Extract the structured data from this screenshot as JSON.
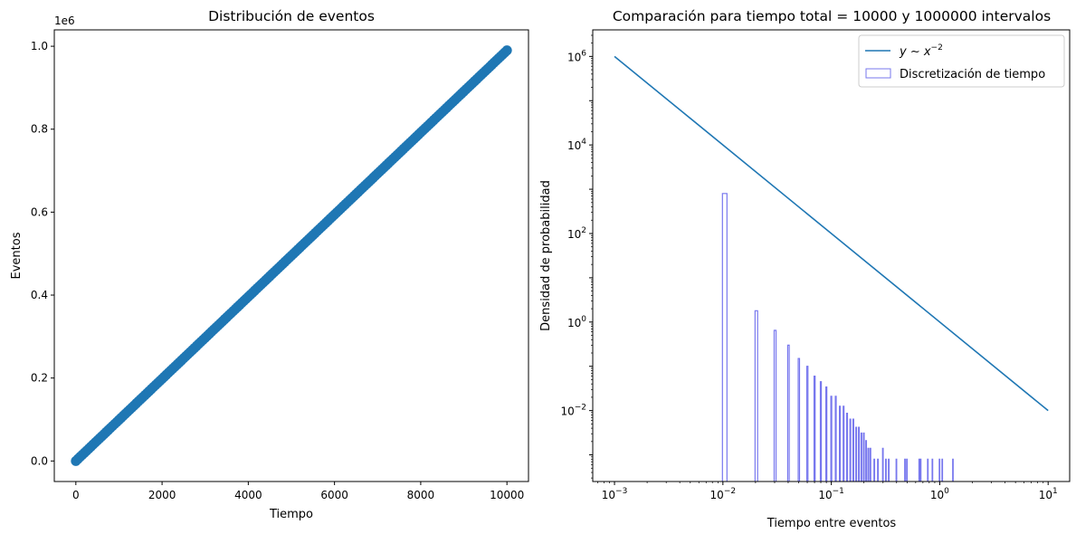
{
  "chart_data": [
    {
      "type": "scatter",
      "title": "Distribución de eventos",
      "xlabel": "Tiempo",
      "ylabel": "Eventos",
      "y_offset_text": "1e6",
      "xlim": [
        -500,
        10500
      ],
      "ylim": [
        -49500,
        1039500
      ],
      "xticks": [
        0,
        2000,
        4000,
        6000,
        8000,
        10000
      ],
      "xtick_labels": [
        "0",
        "2000",
        "4000",
        "6000",
        "8000",
        "10000"
      ],
      "yticks": [
        0,
        200000,
        400000,
        600000,
        800000,
        1000000
      ],
      "ytick_labels": [
        "0.0",
        "0.2",
        "0.4",
        "0.6",
        "0.8",
        "1.0"
      ],
      "color": "#1f77b4",
      "grid": false,
      "series": [
        {
          "x": [
            0,
            50,
            100,
            150,
            200,
            250,
            300,
            350,
            400,
            450,
            500,
            550,
            600,
            650,
            700,
            750,
            800,
            850,
            900,
            950,
            1000,
            1050,
            1100,
            1150,
            1200,
            1250,
            1300,
            1350,
            1400,
            1450,
            1500,
            1550,
            1600,
            1650,
            1700,
            1750,
            1800,
            1850,
            1900,
            1950,
            2000,
            2050,
            2100,
            2150,
            2200,
            2250,
            2300,
            2350,
            2400,
            2450,
            2500,
            2550,
            2600,
            2650,
            2700,
            2750,
            2800,
            2850,
            2900,
            2950,
            3000,
            3050,
            3100,
            3150,
            3200,
            3250,
            3300,
            3350,
            3400,
            3450,
            3500,
            3550,
            3600,
            3650,
            3700,
            3750,
            3800,
            3850,
            3900,
            3950,
            4000,
            4050,
            4100,
            4150,
            4200,
            4250,
            4300,
            4350,
            4400,
            4450,
            4500,
            4550,
            4600,
            4650,
            4700,
            4750,
            4800,
            4850,
            4900,
            4950,
            5000,
            5050,
            5100,
            5150,
            5200,
            5250,
            5300,
            5350,
            5400,
            5450,
            5500,
            5550,
            5600,
            5650,
            5700,
            5750,
            5800,
            5850,
            5900,
            5950,
            6000,
            6050,
            6100,
            6150,
            6200,
            6250,
            6300,
            6350,
            6400,
            6450,
            6500,
            6550,
            6600,
            6650,
            6700,
            6750,
            6800,
            6850,
            6900,
            6950,
            7000,
            7050,
            7100,
            7150,
            7200,
            7250,
            7300,
            7350,
            7400,
            7450,
            7500,
            7550,
            7600,
            7650,
            7700,
            7750,
            7800,
            7850,
            7900,
            7950,
            8000,
            8050,
            8100,
            8150,
            8200,
            8250,
            8300,
            8350,
            8400,
            8450,
            8500,
            8550,
            8600,
            8650,
            8700,
            8750,
            8800,
            8850,
            8900,
            8950,
            9000,
            9050,
            9100,
            9150,
            9200,
            9250,
            9300,
            9350,
            9400,
            9450,
            9500,
            9550,
            9600,
            9650,
            9700,
            9750,
            9800,
            9850,
            9900,
            9950,
            10000
          ],
          "y": [
            0,
            4950,
            9900,
            14850,
            19800,
            24750,
            29700,
            34650,
            39600,
            44550,
            49500,
            54450,
            59400,
            64350,
            69300,
            74250,
            79200,
            84150,
            89100,
            94050,
            99000,
            103950,
            108900,
            113850,
            118800,
            123750,
            128700,
            133650,
            138600,
            143550,
            148500,
            153450,
            158400,
            163350,
            168300,
            173250,
            178200,
            183150,
            188100,
            193050,
            198000,
            202950,
            207900,
            212850,
            217800,
            222750,
            227700,
            232650,
            237600,
            242550,
            247500,
            252450,
            257400,
            262350,
            267300,
            272250,
            277200,
            282150,
            287100,
            292050,
            297000,
            301950,
            306900,
            311850,
            316800,
            321750,
            326700,
            331650,
            336600,
            341550,
            346500,
            351450,
            356400,
            361350,
            366300,
            371250,
            376200,
            381150,
            386100,
            391050,
            396000,
            400950,
            405900,
            410850,
            415800,
            420750,
            425700,
            430650,
            435600,
            440550,
            445500,
            450450,
            455400,
            460350,
            465300,
            470250,
            475200,
            480150,
            485100,
            490050,
            495000,
            499950,
            504900,
            509850,
            514800,
            519750,
            524700,
            529650,
            534600,
            539550,
            544500,
            549450,
            554400,
            559350,
            564300,
            569250,
            574200,
            579150,
            584100,
            589050,
            594000,
            598950,
            603900,
            608850,
            613800,
            618750,
            623700,
            628650,
            633600,
            638550,
            643500,
            648450,
            653400,
            658350,
            663300,
            668250,
            673200,
            678150,
            683100,
            688050,
            693000,
            697950,
            702900,
            707850,
            712800,
            717750,
            722700,
            727650,
            732600,
            737550,
            742500,
            747450,
            752400,
            757350,
            762300,
            767250,
            772200,
            777150,
            782100,
            787050,
            792000,
            796950,
            801900,
            806850,
            811800,
            816750,
            821700,
            826650,
            831600,
            836550,
            841500,
            846450,
            851400,
            856350,
            861300,
            866250,
            871200,
            876150,
            881100,
            886050,
            891000,
            895950,
            900900,
            905850,
            910800,
            915750,
            920700,
            925650,
            930600,
            935550,
            940500,
            945450,
            950400,
            955350,
            960300,
            965250,
            970200,
            975150,
            980100,
            985050,
            990000
          ]
        }
      ]
    },
    {
      "type": "line+histogram",
      "title": "Comparación para tiempo total = 10000 y 1000000 intervalos",
      "xlabel": "Tiempo entre eventos",
      "ylabel": "Densidad de probabilidad",
      "xscale": "log",
      "yscale": "log",
      "xlim": [
        0.00063,
        15.8
      ],
      "ylim": [
        0.00025,
        3980000
      ],
      "xticks": [
        0.001,
        0.01,
        0.1,
        1,
        10
      ],
      "xtick_labels": [
        [
          "10",
          "−3"
        ],
        [
          "10",
          "−2"
        ],
        [
          "10",
          "−1"
        ],
        [
          "10",
          "0"
        ],
        [
          "10",
          "1"
        ]
      ],
      "yticks": [
        0.01,
        1,
        100,
        10000,
        1000000
      ],
      "ytick_labels": [
        [
          "10",
          "−2"
        ],
        [
          "10",
          "0"
        ],
        [
          "10",
          "2"
        ],
        [
          "10",
          "4"
        ],
        [
          "10",
          "6"
        ]
      ],
      "legend_position": "upper right",
      "legend": {
        "line_label": [
          "y ∼ x",
          "−2"
        ],
        "hist_label": "Discretización de tiempo"
      },
      "series": [
        {
          "kind": "line",
          "color": "#1f77b4",
          "x": [
            0.001,
            10
          ],
          "y": [
            1000000,
            0.01
          ]
        },
        {
          "kind": "histogram-step",
          "color": "#7777ee",
          "bins": [
            {
              "x0": 0.0099,
              "x1": 0.0109,
              "y": 800
            },
            {
              "x0": 0.0198,
              "x1": 0.0209,
              "y": 1.8
            },
            {
              "x0": 0.0297,
              "x1": 0.0309,
              "y": 0.65
            },
            {
              "x0": 0.0396,
              "x1": 0.0409,
              "y": 0.3
            },
            {
              "x0": 0.0495,
              "x1": 0.0509,
              "y": 0.15
            },
            {
              "x0": 0.0594,
              "x1": 0.0609,
              "y": 0.1
            },
            {
              "x0": 0.0693,
              "x1": 0.0709,
              "y": 0.06
            },
            {
              "x0": 0.0792,
              "x1": 0.0809,
              "y": 0.045
            },
            {
              "x0": 0.0891,
              "x1": 0.0909,
              "y": 0.034
            },
            {
              "x0": 0.099,
              "x1": 0.1009,
              "y": 0.021
            },
            {
              "x0": 0.1089,
              "x1": 0.1109,
              "y": 0.021
            },
            {
              "x0": 0.1188,
              "x1": 0.1209,
              "y": 0.0125
            },
            {
              "x0": 0.1287,
              "x1": 0.1309,
              "y": 0.0125
            },
            {
              "x0": 0.1386,
              "x1": 0.1409,
              "y": 0.0087
            },
            {
              "x0": 0.1485,
              "x1": 0.1509,
              "y": 0.0064
            },
            {
              "x0": 0.1584,
              "x1": 0.1609,
              "y": 0.0064
            },
            {
              "x0": 0.1683,
              "x1": 0.1709,
              "y": 0.0042
            },
            {
              "x0": 0.1782,
              "x1": 0.1809,
              "y": 0.0042
            },
            {
              "x0": 0.1881,
              "x1": 0.1909,
              "y": 0.0031
            },
            {
              "x0": 0.198,
              "x1": 0.2009,
              "y": 0.0031
            },
            {
              "x0": 0.2079,
              "x1": 0.2109,
              "y": 0.0021
            },
            {
              "x0": 0.2178,
              "x1": 0.2209,
              "y": 0.0014
            },
            {
              "x0": 0.2277,
              "x1": 0.2309,
              "y": 0.0014
            },
            {
              "x0": 0.2475,
              "x1": 0.2509,
              "y": 0.0008
            },
            {
              "x0": 0.2673,
              "x1": 0.2709,
              "y": 0.0008
            },
            {
              "x0": 0.297,
              "x1": 0.3009,
              "y": 0.0014
            },
            {
              "x0": 0.3168,
              "x1": 0.3209,
              "y": 0.0008
            },
            {
              "x0": 0.3366,
              "x1": 0.3409,
              "y": 0.0008
            },
            {
              "x0": 0.396,
              "x1": 0.4009,
              "y": 0.0008
            },
            {
              "x0": 0.4752,
              "x1": 0.4809,
              "y": 0.0008
            },
            {
              "x0": 0.495,
              "x1": 0.5009,
              "y": 0.0008
            },
            {
              "x0": 0.6435,
              "x1": 0.6509,
              "y": 0.0008
            },
            {
              "x0": 0.6633,
              "x1": 0.6709,
              "y": 0.0008
            },
            {
              "x0": 0.7722,
              "x1": 0.7809,
              "y": 0.0008
            },
            {
              "x0": 0.8514,
              "x1": 0.8609,
              "y": 0.0008
            },
            {
              "x0": 0.99,
              "x1": 1.0009,
              "y": 0.0008
            },
            {
              "x0": 1.0494,
              "x1": 1.0609,
              "y": 0.0008
            },
            {
              "x0": 1.3167,
              "x1": 1.3309,
              "y": 0.0008
            }
          ]
        }
      ]
    }
  ]
}
